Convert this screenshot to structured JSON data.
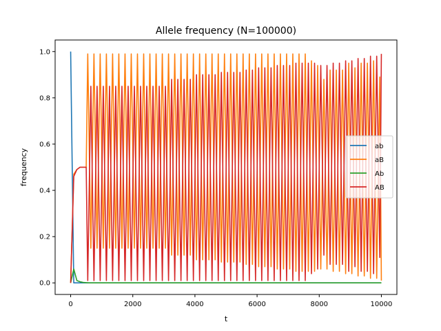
{
  "chart_data": {
    "type": "line",
    "title": "Allele frequency (N=100000)",
    "xlabel": "t",
    "ylabel": "frequency",
    "xlim": [
      -500,
      10500
    ],
    "ylim": [
      -0.05,
      1.05
    ],
    "xticks": [
      0,
      2000,
      4000,
      6000,
      8000,
      10000
    ],
    "yticks": [
      0.0,
      0.2,
      0.4,
      0.6,
      0.8,
      1.0
    ],
    "xtick_labels": [
      "0",
      "2000",
      "4000",
      "6000",
      "8000",
      "10000"
    ],
    "ytick_labels": [
      "0.0",
      "0.2",
      "0.4",
      "0.6",
      "0.8",
      "1.0"
    ],
    "grid": false,
    "legend_position": "center-right",
    "series": [
      {
        "name": "ab",
        "color": "#1f77b4",
        "x": [
          0,
          100,
          200,
          300,
          400,
          500,
          10000
        ],
        "y": [
          1.0,
          0.0,
          0.0,
          0.0,
          0.0,
          0.0,
          0.0
        ]
      },
      {
        "name": "aB",
        "color": "#ff7f0e",
        "x": [
          0,
          100,
          200,
          300,
          400,
          500,
          550,
          650,
          750,
          850,
          950,
          1050,
          1150,
          1250,
          1350,
          1450,
          1550,
          1650,
          1750,
          1850,
          1950,
          2050,
          2150,
          2250,
          2350,
          2450,
          2550,
          2650,
          2750,
          2850,
          2950,
          3050,
          3150,
          3250,
          3350,
          3450,
          3550,
          3650,
          3750,
          3850,
          3950,
          4050,
          4150,
          4250,
          4350,
          4450,
          4550,
          4650,
          4750,
          4850,
          4950,
          5050,
          5150,
          5250,
          5350,
          5450,
          5550,
          5650,
          5750,
          5850,
          5950,
          6050,
          6150,
          6250,
          6350,
          6450,
          6550,
          6650,
          6750,
          6850,
          6950,
          7050,
          7150,
          7250,
          7350,
          7450,
          7550,
          7650,
          7750,
          7850,
          7950,
          8050,
          8150,
          8250,
          8350,
          8450,
          8550,
          8650,
          8750,
          8850,
          8950,
          9050,
          9150,
          9250,
          9350,
          9450,
          9550,
          9650,
          9750,
          9850,
          9950,
          10000
        ],
        "y": [
          0.0,
          0.47,
          0.49,
          0.5,
          0.5,
          0.5,
          0.99,
          0.15,
          0.99,
          0.15,
          0.99,
          0.15,
          0.99,
          0.15,
          0.99,
          0.15,
          0.99,
          0.15,
          0.99,
          0.15,
          0.99,
          0.15,
          0.99,
          0.15,
          0.99,
          0.15,
          0.99,
          0.15,
          0.99,
          0.15,
          0.99,
          0.15,
          0.99,
          0.12,
          0.99,
          0.12,
          0.99,
          0.12,
          0.99,
          0.12,
          0.99,
          0.1,
          0.99,
          0.1,
          0.99,
          0.1,
          0.99,
          0.1,
          0.99,
          0.09,
          0.99,
          0.09,
          0.99,
          0.09,
          0.99,
          0.09,
          0.99,
          0.08,
          0.99,
          0.08,
          0.99,
          0.07,
          0.99,
          0.07,
          0.99,
          0.07,
          0.99,
          0.06,
          0.99,
          0.06,
          0.99,
          0.06,
          0.99,
          0.05,
          0.99,
          0.05,
          0.99,
          0.05,
          0.96,
          0.05,
          0.94,
          0.06,
          0.88,
          0.06,
          0.92,
          0.05,
          0.92,
          0.05,
          0.92,
          0.04,
          0.95,
          0.04,
          0.93,
          0.03,
          0.95,
          0.03,
          0.95,
          0.02,
          0.96,
          0.02,
          0.89,
          0.01
        ]
      },
      {
        "name": "Ab",
        "color": "#2ca02c",
        "x": [
          0,
          100,
          200,
          300,
          400,
          500,
          600,
          800,
          1000,
          10000
        ],
        "y": [
          0.0,
          0.06,
          0.01,
          0.005,
          0.002,
          0.001,
          0.0,
          0.0,
          0.0,
          0.0
        ]
      },
      {
        "name": "AB",
        "color": "#d62728",
        "x": [
          0,
          100,
          200,
          300,
          400,
          500,
          550,
          650,
          750,
          850,
          950,
          1050,
          1150,
          1250,
          1350,
          1450,
          1550,
          1650,
          1750,
          1850,
          1950,
          2050,
          2150,
          2250,
          2350,
          2450,
          2550,
          2650,
          2750,
          2850,
          2950,
          3050,
          3150,
          3250,
          3350,
          3450,
          3550,
          3650,
          3750,
          3850,
          3950,
          4050,
          4150,
          4250,
          4350,
          4450,
          4550,
          4650,
          4750,
          4850,
          4950,
          5050,
          5150,
          5250,
          5350,
          5450,
          5550,
          5650,
          5750,
          5850,
          5950,
          6050,
          6150,
          6250,
          6350,
          6450,
          6550,
          6650,
          6750,
          6850,
          6950,
          7050,
          7150,
          7250,
          7350,
          7450,
          7550,
          7650,
          7750,
          7850,
          7950,
          8050,
          8150,
          8250,
          8350,
          8450,
          8550,
          8650,
          8750,
          8850,
          8950,
          9050,
          9150,
          9250,
          9350,
          9450,
          9550,
          9650,
          9750,
          9850,
          9950,
          10000
        ],
        "y": [
          0.0,
          0.46,
          0.49,
          0.5,
          0.5,
          0.5,
          0.01,
          0.85,
          0.01,
          0.85,
          0.01,
          0.85,
          0.01,
          0.85,
          0.01,
          0.85,
          0.01,
          0.85,
          0.01,
          0.85,
          0.01,
          0.85,
          0.01,
          0.85,
          0.01,
          0.85,
          0.01,
          0.85,
          0.01,
          0.85,
          0.01,
          0.85,
          0.01,
          0.88,
          0.01,
          0.88,
          0.01,
          0.88,
          0.01,
          0.88,
          0.01,
          0.9,
          0.01,
          0.9,
          0.01,
          0.9,
          0.01,
          0.9,
          0.01,
          0.91,
          0.01,
          0.91,
          0.01,
          0.91,
          0.01,
          0.91,
          0.01,
          0.92,
          0.01,
          0.92,
          0.01,
          0.93,
          0.01,
          0.93,
          0.01,
          0.93,
          0.01,
          0.94,
          0.01,
          0.94,
          0.01,
          0.94,
          0.01,
          0.95,
          0.01,
          0.95,
          0.01,
          0.95,
          0.04,
          0.95,
          0.06,
          0.94,
          0.12,
          0.94,
          0.08,
          0.95,
          0.08,
          0.95,
          0.08,
          0.96,
          0.05,
          0.96,
          0.07,
          0.97,
          0.05,
          0.97,
          0.05,
          0.98,
          0.04,
          0.98,
          0.11,
          0.99
        ]
      }
    ]
  }
}
